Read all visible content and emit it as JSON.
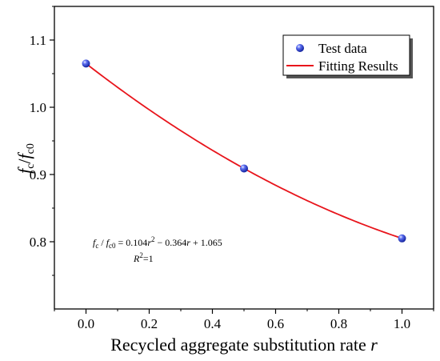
{
  "chart_data": {
    "type": "scatter",
    "xlabel": {
      "main": "Recycled aggregate substitution rate ",
      "var": "r"
    },
    "ylabel": {
      "f1": "f",
      "s1": "c",
      "slash": "/",
      "f2": "f",
      "s2": "c0"
    },
    "xlim": [
      -0.1,
      1.1
    ],
    "ylim": [
      0.7,
      1.15
    ],
    "xticks": [
      0.0,
      0.2,
      0.4,
      0.6,
      0.8,
      1.0
    ],
    "xtick_labels": [
      "0.0",
      "0.2",
      "0.4",
      "0.6",
      "0.8",
      "1.0"
    ],
    "yticks": [
      0.8,
      0.9,
      1.0,
      1.1
    ],
    "ytick_labels": [
      "0.8",
      "0.9",
      "1.0",
      "1.1"
    ],
    "grid": false,
    "legend_position": "top-right",
    "series": [
      {
        "name": "Test data",
        "kind": "points",
        "color": "#2b3de0",
        "x": [
          0.0,
          0.5,
          1.0
        ],
        "y": [
          1.065,
          0.909,
          0.805
        ]
      },
      {
        "name": "Fitting Results",
        "kind": "line",
        "color": "#e8141b",
        "coefficients": {
          "a": 0.104,
          "b": -0.364,
          "c": 1.065
        }
      }
    ],
    "annotation": {
      "line1": {
        "lhs_f1": "f",
        "lhs_s1": "c",
        "lhs_slash": " / ",
        "lhs_f2": "f",
        "lhs_s2": "c0",
        "rhs_a": " = 0.104",
        "rhs_r1": "r",
        "rhs_exp": "2",
        "rhs_b": " − 0.364",
        "rhs_r2": "r",
        "rhs_c": " + 1.065"
      },
      "line2": {
        "R": "R",
        "exp": "2",
        "rest": "=1"
      }
    }
  }
}
